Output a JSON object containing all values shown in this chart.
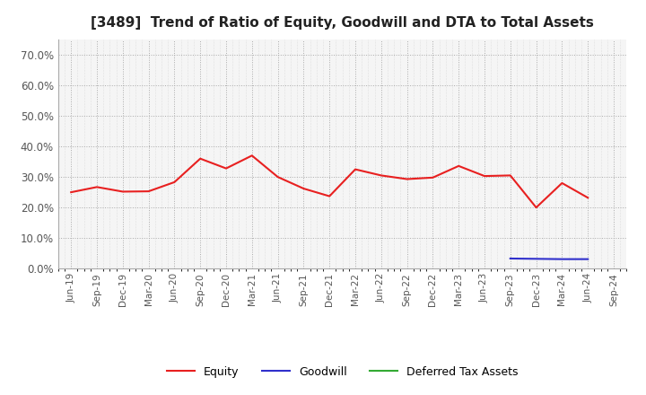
{
  "title": "[3489]  Trend of Ratio of Equity, Goodwill and DTA to Total Assets",
  "x_labels": [
    "Jun-19",
    "Sep-19",
    "Dec-19",
    "Mar-20",
    "Jun-20",
    "Sep-20",
    "Dec-20",
    "Mar-21",
    "Jun-21",
    "Sep-21",
    "Dec-21",
    "Mar-22",
    "Jun-22",
    "Sep-22",
    "Dec-22",
    "Mar-23",
    "Jun-23",
    "Sep-23",
    "Dec-23",
    "Mar-24",
    "Jun-24",
    "Sep-24"
  ],
  "equity": [
    0.25,
    0.267,
    0.252,
    0.253,
    0.283,
    0.36,
    0.328,
    0.37,
    0.3,
    0.262,
    0.237,
    0.325,
    0.305,
    0.293,
    0.298,
    0.336,
    0.303,
    0.305,
    0.2,
    0.28,
    0.232,
    null
  ],
  "goodwill": [
    null,
    null,
    null,
    null,
    null,
    null,
    null,
    null,
    null,
    null,
    null,
    null,
    null,
    null,
    null,
    null,
    null,
    0.033,
    0.032,
    0.031,
    0.031,
    null
  ],
  "dta": [
    null,
    null,
    null,
    null,
    null,
    null,
    null,
    null,
    null,
    null,
    null,
    null,
    null,
    null,
    null,
    null,
    null,
    null,
    null,
    null,
    null,
    null
  ],
  "equity_color": "#e82020",
  "goodwill_color": "#3030cc",
  "dta_color": "#33aa33",
  "ylim": [
    0.0,
    0.75
  ],
  "yticks": [
    0.0,
    0.1,
    0.2,
    0.3,
    0.4,
    0.5,
    0.6,
    0.7
  ],
  "bg_color": "#ffffff",
  "plot_bg_color": "#f5f5f5",
  "grid_color": "#aaaaaa",
  "legend_labels": [
    "Equity",
    "Goodwill",
    "Deferred Tax Assets"
  ]
}
